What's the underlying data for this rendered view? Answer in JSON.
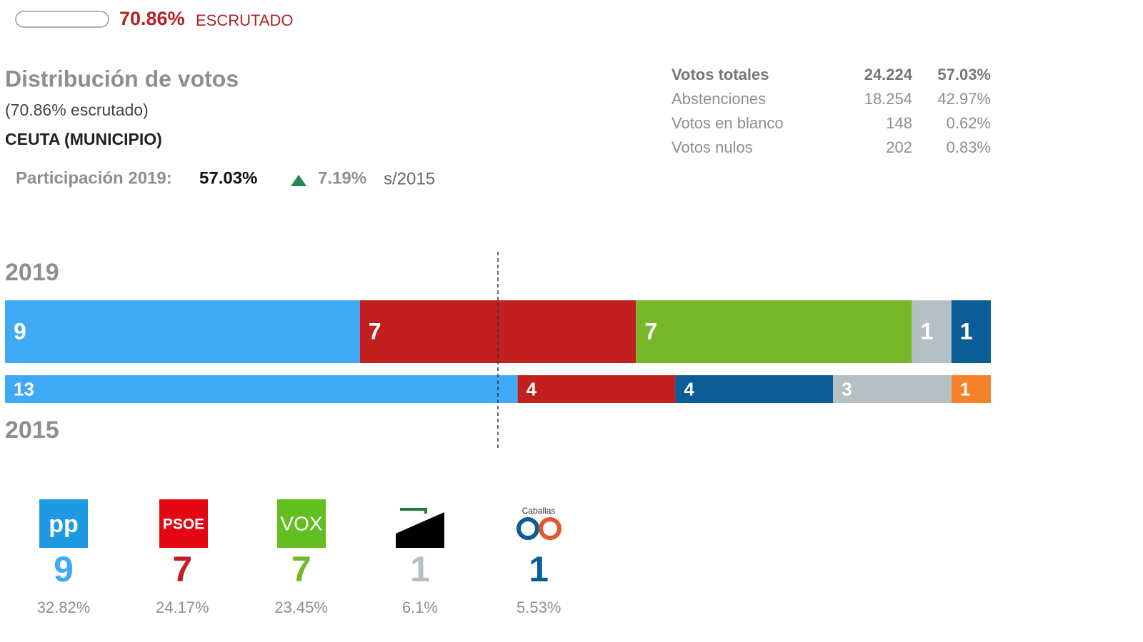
{
  "progress": {
    "value": 70.86,
    "label": "70.86%",
    "text": "ESCRUTADO"
  },
  "heading": {
    "title": "Distribución de votos",
    "subtitle": "(70.86% escrutado)",
    "location": "CEUTA (MUNICIPIO)"
  },
  "participation": {
    "label": "Participación 2019:",
    "value": "57.03%",
    "change": "7.19%",
    "reference": "s/2015"
  },
  "summary": {
    "rows": [
      [
        "Votos totales",
        "24.224",
        "57.03%"
      ],
      [
        "Abstenciones",
        "18.254",
        "42.97%"
      ],
      [
        "Votos en blanco",
        "148",
        "0.62%"
      ],
      [
        "Votos nulos",
        "202",
        "0.83%"
      ]
    ]
  },
  "seats": [
    {
      "year": "2019",
      "segments": [
        {
          "value": 9,
          "color": "#3fa9f5"
        },
        {
          "value": 7,
          "color": "#c1201f"
        },
        {
          "value": 7,
          "color": "#76b82a"
        },
        {
          "value": 1,
          "color": "#b4c0c4"
        },
        {
          "value": 1,
          "color": "#0a5e95"
        }
      ]
    },
    {
      "year": "2015",
      "segments": [
        {
          "value": 13,
          "color": "#3fa9f5"
        },
        {
          "value": 4,
          "color": "#c1201f"
        },
        {
          "value": 4,
          "color": "#0a5e95"
        },
        {
          "value": 3,
          "color": "#b4c0c4"
        },
        {
          "value": 1,
          "color": "#f5822a"
        }
      ]
    }
  ],
  "parties": [
    {
      "logo_text": "pp",
      "seats": 9,
      "percent": "32.82%",
      "color": "#3fa9f5"
    },
    {
      "logo_text": "PSOE",
      "seats": 7,
      "percent": "24.17%",
      "color": "#c1201f"
    },
    {
      "logo_text": "VOX",
      "seats": 7,
      "percent": "23.45%",
      "color": "#76b82a"
    },
    {
      "seats": 1,
      "percent": "6.1%",
      "color": "#b4c0c4"
    },
    {
      "logo_text": "Caballas",
      "seats": 1,
      "percent": "5.53%",
      "color": "#0a5e95"
    }
  ]
}
